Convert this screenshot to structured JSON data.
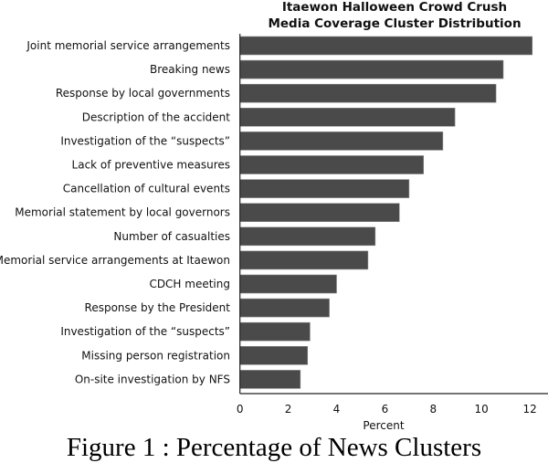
{
  "chart_data": {
    "type": "bar",
    "orientation": "horizontal",
    "title_lines": [
      "Itaewon Halloween Crowd Crush",
      "Media Coverage Cluster Distribution"
    ],
    "xlabel": "Percent",
    "ylabel": "",
    "xlim": [
      0,
      12.8
    ],
    "xticks": [
      0,
      2,
      4,
      6,
      8,
      10,
      12
    ],
    "categories": [
      "Joint memorial service arrangements",
      "Breaking news",
      "Response by local governments",
      "Description of the accident",
      "Investigation of the “suspects”",
      "Lack of preventive measures",
      "Cancellation of cultural events",
      "Memorial statement by local governors",
      "Number of casualties",
      "Memorial service arrangements at Itaewon",
      "CDCH meeting",
      "Response by the President",
      "Investigation of the “suspects”",
      "Missing person registration",
      "On-site investigation by NFS"
    ],
    "values": [
      12.1,
      10.9,
      10.6,
      8.9,
      8.4,
      7.6,
      7.0,
      6.6,
      5.6,
      5.3,
      4.0,
      3.7,
      2.9,
      2.8,
      2.5
    ],
    "bar_color": "#4a4a4a",
    "grid": false,
    "legend": "none"
  },
  "caption": "Figure 1  : Percentage of News Clusters"
}
